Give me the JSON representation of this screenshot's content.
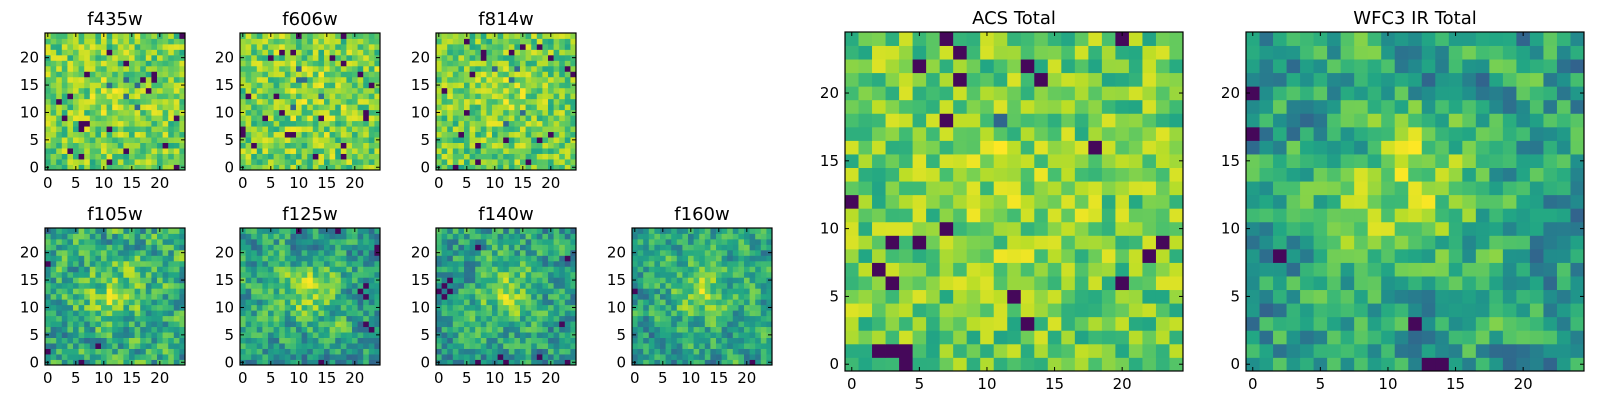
{
  "chart_data": {
    "type": "heatmap",
    "colormap": "viridis",
    "panels": [
      {
        "title": "f435w",
        "grid": 25,
        "xticks": [
          "0",
          "5",
          "10",
          "15",
          "20"
        ],
        "yticks": [
          "0",
          "5",
          "10",
          "15",
          "20"
        ],
        "seed": 11,
        "smooth": 0,
        "source_strength": 0.15
      },
      {
        "title": "f606w",
        "grid": 25,
        "xticks": [
          "0",
          "5",
          "10",
          "15",
          "20"
        ],
        "yticks": [
          "0",
          "5",
          "10",
          "15",
          "20"
        ],
        "seed": 23,
        "smooth": 0,
        "source_strength": 0.15
      },
      {
        "title": "f814w",
        "grid": 25,
        "xticks": [
          "0",
          "5",
          "10",
          "15",
          "20"
        ],
        "yticks": [
          "0",
          "5",
          "10",
          "15",
          "20"
        ],
        "seed": 37,
        "smooth": 0,
        "source_strength": 0.2
      },
      {
        "title": "f105w",
        "grid": 25,
        "xticks": [
          "0",
          "5",
          "10",
          "15",
          "20"
        ],
        "yticks": [
          "0",
          "5",
          "10",
          "15",
          "20"
        ],
        "seed": 41,
        "smooth": 1,
        "source_strength": 0.35
      },
      {
        "title": "f125w",
        "grid": 25,
        "xticks": [
          "0",
          "5",
          "10",
          "15",
          "20"
        ],
        "yticks": [
          "0",
          "5",
          "10",
          "15",
          "20"
        ],
        "seed": 53,
        "smooth": 1,
        "source_strength": 0.4
      },
      {
        "title": "f140w",
        "grid": 25,
        "xticks": [
          "0",
          "5",
          "10",
          "15",
          "20"
        ],
        "yticks": [
          "0",
          "5",
          "10",
          "15",
          "20"
        ],
        "seed": 67,
        "smooth": 1,
        "source_strength": 0.4
      },
      {
        "title": "f160w",
        "grid": 25,
        "xticks": [
          "0",
          "5",
          "10",
          "15",
          "20"
        ],
        "yticks": [
          "0",
          "5",
          "10",
          "15",
          "20"
        ],
        "seed": 79,
        "smooth": 1,
        "source_strength": 0.4
      },
      {
        "title": "ACS Total",
        "grid": 25,
        "xticks": [
          "0",
          "5",
          "10",
          "15",
          "20"
        ],
        "yticks": [
          "0",
          "5",
          "10",
          "15",
          "20"
        ],
        "seed": 97,
        "smooth": 0,
        "source_strength": 0.2
      },
      {
        "title": "WFC3 IR Total",
        "grid": 25,
        "xticks": [
          "0",
          "5",
          "10",
          "15",
          "20"
        ],
        "yticks": [
          "0",
          "5",
          "10",
          "15",
          "20"
        ],
        "seed": 101,
        "smooth": 1,
        "source_strength": 0.5
      }
    ]
  }
}
